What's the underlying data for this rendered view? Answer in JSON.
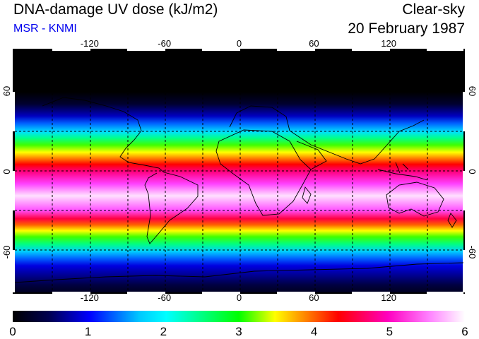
{
  "header": {
    "title": "DNA-damage UV dose (kJ/m2)",
    "subtitle": "MSR - KNMI",
    "condition": "Clear-sky",
    "date": "20 February 1987"
  },
  "map": {
    "lon_ticks": [
      "-120",
      "-60",
      "0",
      "60",
      "120"
    ],
    "lat_ticks": [
      "60",
      "0",
      "-60"
    ],
    "lon_range": [
      -180,
      180
    ],
    "lat_range": [
      -90,
      90
    ]
  },
  "colorbar": {
    "labels": [
      "0",
      "1",
      "2",
      "3",
      "4",
      "5",
      "6"
    ],
    "colors": [
      "#000000",
      "#000050",
      "#0000ff",
      "#00c8ff",
      "#00ffff",
      "#00ff80",
      "#00ff00",
      "#ffff00",
      "#ff8000",
      "#ff0000",
      "#ff00c0",
      "#ff80ff",
      "#ffffff"
    ]
  }
}
